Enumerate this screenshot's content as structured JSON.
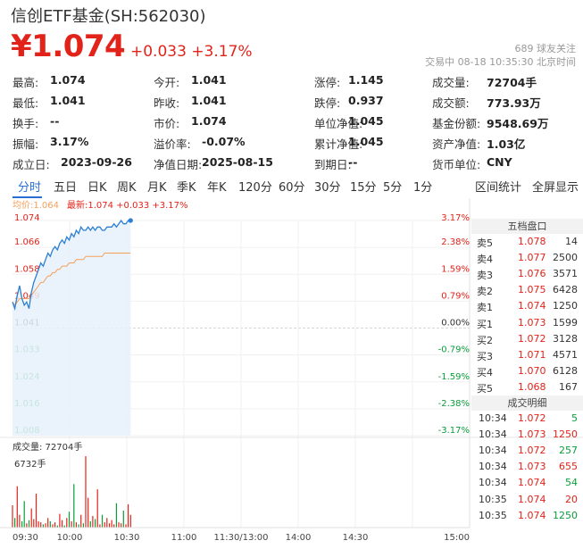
{
  "header": {
    "title": "信创ETF基金(SH:562030)",
    "price": "¥1.074",
    "change": "+0.033 +3.17%",
    "followers": "689 球友关注",
    "status": "交易中 08-18 10:35:30 北京时间"
  },
  "stats": [
    [
      {
        "label": "最高:",
        "value": "1.074",
        "tone": "up"
      },
      {
        "label": "今开:",
        "value": "1.041"
      },
      {
        "label": "涨停:",
        "value": "1.145",
        "tone": "up"
      },
      {
        "label": "成交量:",
        "value": "72704手"
      }
    ],
    [
      {
        "label": "最低:",
        "value": "1.041"
      },
      {
        "label": "昨收:",
        "value": "1.041"
      },
      {
        "label": "跌停:",
        "value": "0.937",
        "tone": "down"
      },
      {
        "label": "成交额:",
        "value": "773.93万"
      }
    ],
    [
      {
        "label": "换手:",
        "value": "--"
      },
      {
        "label": "市价:",
        "value": "1.074"
      },
      {
        "label": "单位净值:",
        "value": "1.045"
      },
      {
        "label": "基金份额:",
        "value": "9548.69万"
      }
    ],
    [
      {
        "label": "振幅:",
        "value": "3.17%"
      },
      {
        "label": "溢价率:",
        "value": "-0.07%"
      },
      {
        "label": "累计净值:",
        "value": "1.045"
      },
      {
        "label": "资产净值:",
        "value": "1.03亿"
      }
    ],
    [
      {
        "label": "成立日:",
        "value": "2023-09-26"
      },
      {
        "label": "净值日期:",
        "value": "2025-08-15"
      },
      {
        "label": "到期日:",
        "value": "--"
      },
      {
        "label": "货币单位:",
        "value": "CNY"
      }
    ]
  ],
  "tabs": [
    "分时",
    "五日",
    "日K",
    "周K",
    "月K",
    "季K",
    "年K",
    "120分",
    "60分",
    "30分",
    "15分",
    "5分",
    "1分"
  ],
  "tab_actions": [
    "区间统计",
    "全屏显示"
  ],
  "chart_legend": {
    "avg": "均价:1.064",
    "latest": "最新:1.074 +0.033 +3.17%"
  },
  "colors": {
    "up": "#e2231a",
    "down": "#0a9e3a",
    "price_line": "#2a7fd4",
    "avg_line": "#f5a05a",
    "active_tab": "#2a6fd6"
  },
  "chart_data": {
    "type": "line",
    "y_ticks": [
      "1.074",
      "1.066",
      "1.058",
      "1.049",
      "1.041",
      "1.033",
      "1.024",
      "1.016",
      "1.008"
    ],
    "pct_ticks": [
      "3.17%",
      "2.38%",
      "1.59%",
      "0.79%",
      "0.00%",
      "-0.79%",
      "-1.59%",
      "-2.38%",
      "-3.17%"
    ],
    "ylim": [
      1.008,
      1.074
    ],
    "prev_close": 1.041,
    "x_ticks": [
      "09:30",
      "10:00",
      "10:30",
      "11:00",
      "11:30/13:00",
      "14:00",
      "14:30",
      "15:00"
    ],
    "price": [
      1.049,
      1.047,
      1.051,
      1.054,
      1.05,
      1.048,
      1.049,
      1.047,
      1.052,
      1.055,
      1.057,
      1.059,
      1.061,
      1.06,
      1.062,
      1.064,
      1.063,
      1.065,
      1.066,
      1.065,
      1.067,
      1.068,
      1.067,
      1.069,
      1.068,
      1.07,
      1.069,
      1.071,
      1.07,
      1.072,
      1.071,
      1.071,
      1.072,
      1.071,
      1.072,
      1.071,
      1.072,
      1.072,
      1.071,
      1.071,
      1.072,
      1.072,
      1.072,
      1.073,
      1.072,
      1.073,
      1.074,
      1.073,
      1.073,
      1.074,
      1.074
    ],
    "avg": [
      1.049,
      1.048,
      1.049,
      1.05,
      1.05,
      1.05,
      1.05,
      1.05,
      1.051,
      1.052,
      1.053,
      1.054,
      1.055,
      1.055,
      1.056,
      1.057,
      1.057,
      1.058,
      1.058,
      1.059,
      1.059,
      1.06,
      1.06,
      1.06,
      1.061,
      1.061,
      1.061,
      1.062,
      1.062,
      1.062,
      1.062,
      1.063,
      1.063,
      1.063,
      1.063,
      1.063,
      1.063,
      1.063,
      1.063,
      1.064,
      1.064,
      1.064,
      1.064,
      1.064,
      1.064,
      1.064,
      1.064,
      1.064,
      1.064,
      1.064,
      1.064
    ],
    "volume_label": "成交量: 72704手",
    "volume_max_label": "6732手",
    "volume_max": 6732,
    "volumes": [
      2100,
      900,
      3900,
      1200,
      600,
      2500,
      400,
      700,
      1800,
      800,
      3200,
      600,
      500,
      300,
      400,
      900,
      600,
      300,
      500,
      200,
      1300,
      700,
      200,
      900,
      1500,
      600,
      4100,
      500,
      300,
      1200,
      400,
      6732,
      2800,
      600,
      1100,
      800,
      3600,
      300,
      1200,
      500,
      900,
      400,
      700,
      300,
      2300,
      500,
      400,
      1600,
      300,
      2200,
      1200
    ]
  },
  "order_book": {
    "title": "五档盘口",
    "rows": [
      {
        "label": "卖5",
        "price": "1.078",
        "qty": "14"
      },
      {
        "label": "卖4",
        "price": "1.077",
        "qty": "2500"
      },
      {
        "label": "卖3",
        "price": "1.076",
        "qty": "3571"
      },
      {
        "label": "卖2",
        "price": "1.075",
        "qty": "6428"
      },
      {
        "label": "卖1",
        "price": "1.074",
        "qty": "1250"
      },
      {
        "label": "买1",
        "price": "1.073",
        "qty": "1599"
      },
      {
        "label": "买2",
        "price": "1.072",
        "qty": "3128"
      },
      {
        "label": "买3",
        "price": "1.071",
        "qty": "4571"
      },
      {
        "label": "买4",
        "price": "1.070",
        "qty": "6128"
      },
      {
        "label": "买5",
        "price": "1.068",
        "qty": "167"
      }
    ]
  },
  "trades": {
    "title": "成交明细",
    "rows": [
      {
        "time": "10:34",
        "price": "1.072",
        "qty": "5"
      },
      {
        "time": "10:34",
        "price": "1.073",
        "qty": "1250"
      },
      {
        "time": "10:34",
        "price": "1.072",
        "qty": "257"
      },
      {
        "time": "10:34",
        "price": "1.073",
        "qty": "655"
      },
      {
        "time": "10:34",
        "price": "1.074",
        "qty": "54"
      },
      {
        "time": "10:35",
        "price": "1.074",
        "qty": "20"
      },
      {
        "time": "10:35",
        "price": "1.074",
        "qty": "1250"
      }
    ]
  }
}
